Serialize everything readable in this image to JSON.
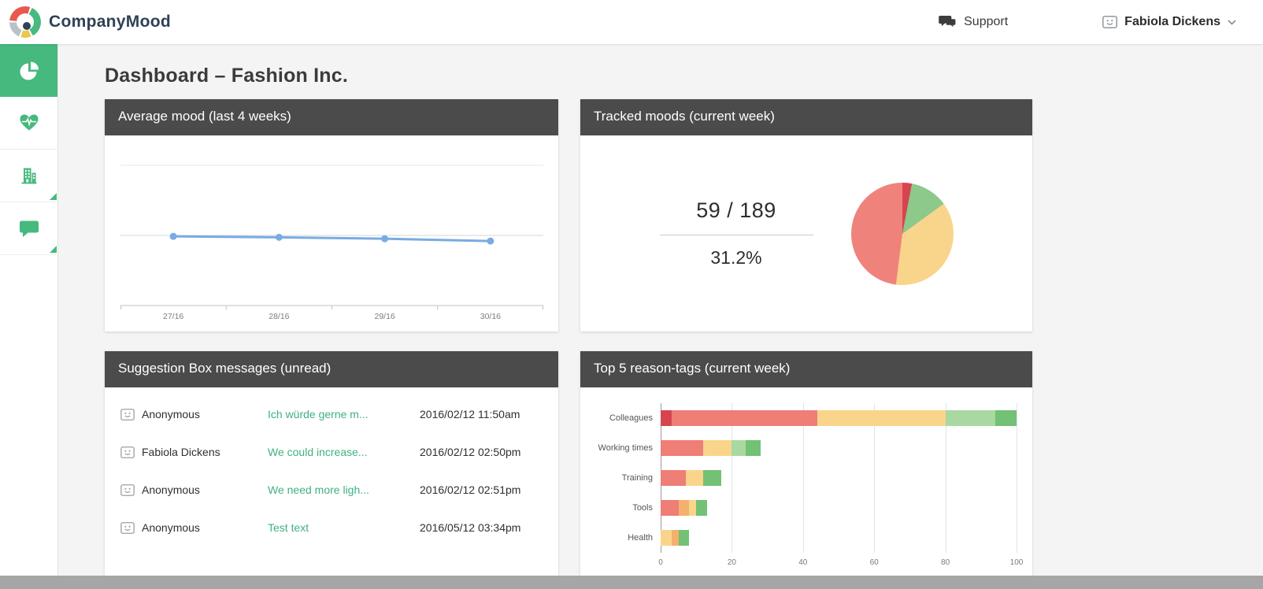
{
  "topbar": {
    "brand": "CompanyMood",
    "support_label": "Support",
    "user_name": "Fabiola Dickens"
  },
  "sidebar": {
    "items": [
      {
        "id": "dashboard",
        "icon": "pie-chart-icon",
        "active": true
      },
      {
        "id": "mood-history",
        "icon": "heartbeat-icon",
        "active": false
      },
      {
        "id": "company",
        "icon": "building-icon",
        "active": false
      },
      {
        "id": "feedback",
        "icon": "chat-icon",
        "active": false
      }
    ]
  },
  "page": {
    "title": "Dashboard – Fashion Inc."
  },
  "cards": {
    "average_mood": {
      "title": "Average mood (last 4 weeks)"
    },
    "tracked_moods": {
      "title": "Tracked moods (current week)",
      "ratio": "59 / 189",
      "percent": "31.2%"
    },
    "suggestion_box": {
      "title": "Suggestion Box messages (unread)",
      "messages": [
        {
          "author": "Anonymous",
          "preview": "Ich würde gerne m...",
          "date": "2016/02/12 11:50am"
        },
        {
          "author": "Fabiola Dickens",
          "preview": "We could increase...",
          "date": "2016/02/12 02:50pm"
        },
        {
          "author": "Anonymous",
          "preview": "We need more ligh...",
          "date": "2016/02/12 02:51pm"
        },
        {
          "author": "Anonymous",
          "preview": "Test text",
          "date": "2016/05/12 03:34pm"
        }
      ]
    },
    "top_tags": {
      "title": "Top 5 reason-tags (current week)"
    }
  },
  "colors": {
    "accent_green": "#45b97e",
    "card_header_gray": "#4b4b4b",
    "message_link_green": "#3eb180"
  },
  "chart_data": [
    {
      "type": "line",
      "title": "Average mood (last 4 weeks)",
      "x": [
        "27/16",
        "28/16",
        "29/16",
        "30/16"
      ],
      "values": [
        2.98,
        2.96,
        2.93,
        2.88
      ],
      "ylim": [
        1,
        5
      ],
      "gridline_values": [
        4.5,
        3.0
      ],
      "line_color": "#79abe3",
      "grid": "horizontal",
      "legend": "none"
    },
    {
      "type": "pie",
      "title": "Tracked moods (current week)",
      "total_label": "59 / 189",
      "percent_label": "31.2%",
      "start_angle_deg": 0,
      "slices": [
        {
          "name": "dark-red",
          "value": 3,
          "color": "#d6454f"
        },
        {
          "name": "green",
          "value": 12,
          "color": "#8cc98b"
        },
        {
          "name": "yellow",
          "value": 37,
          "color": "#f9d58b"
        },
        {
          "name": "red",
          "value": 48,
          "color": "#ef837b"
        }
      ]
    },
    {
      "type": "bar",
      "orientation": "horizontal",
      "stacked": true,
      "title": "Top 5 reason-tags (current week)",
      "categories": [
        "Colleagues",
        "Working times",
        "Training",
        "Tools",
        "Health"
      ],
      "xlim": [
        0,
        100
      ],
      "xticks": [
        0,
        20,
        40,
        60,
        80,
        100
      ],
      "palette": {
        "darkred": "#d6454f",
        "red": "#ee7e76",
        "orange": "#f2b16d",
        "yellow": "#f9d58b",
        "lightgreen": "#a9d8a1",
        "green": "#72c175"
      },
      "bars": [
        {
          "category": "Colleagues",
          "segments": [
            {
              "color": "darkred",
              "value": 3
            },
            {
              "color": "red",
              "value": 41
            },
            {
              "color": "yellow",
              "value": 36
            },
            {
              "color": "lightgreen",
              "value": 14
            },
            {
              "color": "green",
              "value": 6
            }
          ]
        },
        {
          "category": "Working times",
          "segments": [
            {
              "color": "red",
              "value": 12
            },
            {
              "color": "yellow",
              "value": 8
            },
            {
              "color": "lightgreen",
              "value": 4
            },
            {
              "color": "green",
              "value": 4
            }
          ]
        },
        {
          "category": "Training",
          "segments": [
            {
              "color": "red",
              "value": 7
            },
            {
              "color": "yellow",
              "value": 5
            },
            {
              "color": "green",
              "value": 5
            }
          ]
        },
        {
          "category": "Tools",
          "segments": [
            {
              "color": "red",
              "value": 5
            },
            {
              "color": "orange",
              "value": 3
            },
            {
              "color": "yellow",
              "value": 2
            },
            {
              "color": "green",
              "value": 3
            }
          ]
        },
        {
          "category": "Health",
          "segments": [
            {
              "color": "yellow",
              "value": 3
            },
            {
              "color": "orange",
              "value": 2
            },
            {
              "color": "green",
              "value": 3
            }
          ]
        }
      ]
    }
  ]
}
